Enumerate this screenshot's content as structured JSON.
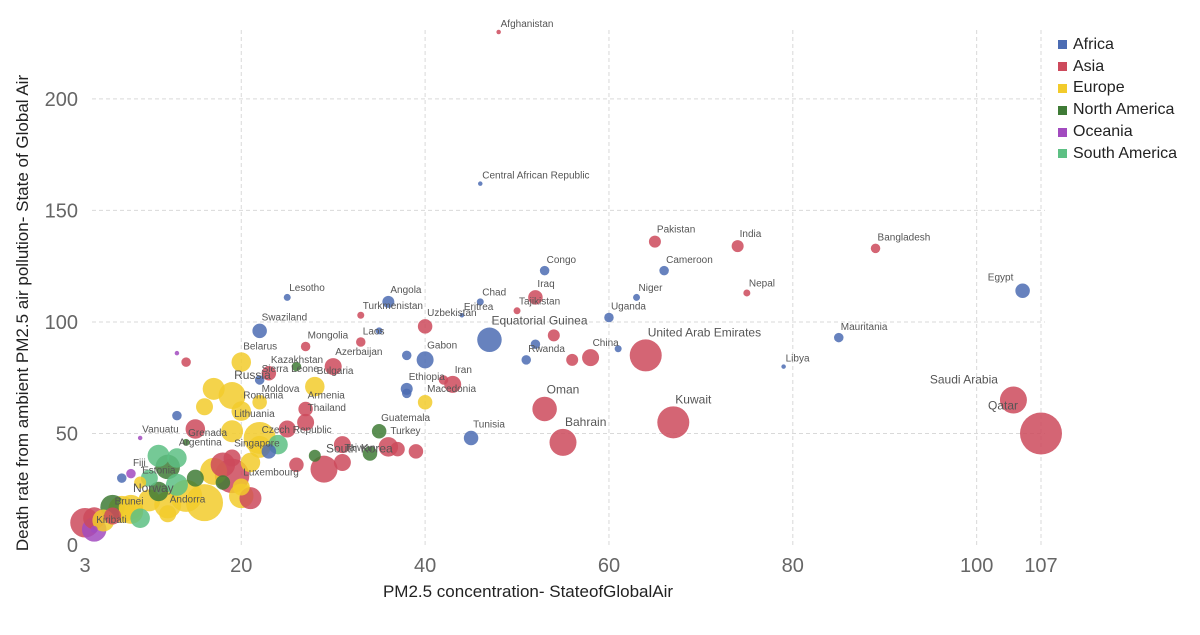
{
  "chart_data": {
    "type": "scatter",
    "xlabel": "PM2.5 concentration- StateofGlobalAir",
    "ylabel": "Death rate from ambient PM2.5 air pollution- State of Global Air",
    "x_ticks": [
      3,
      20,
      40,
      60,
      80,
      100,
      107
    ],
    "y_ticks": [
      0,
      50,
      100,
      150,
      200
    ],
    "xlim": [
      3,
      107
    ],
    "ylim": [
      0,
      230
    ],
    "grid": true,
    "legend_position": "top-right",
    "legend": [
      {
        "name": "Africa",
        "color": "#4C6CB3"
      },
      {
        "name": "Asia",
        "color": "#CD4A5C"
      },
      {
        "name": "Europe",
        "color": "#F2CB2B"
      },
      {
        "name": "North America",
        "color": "#3F7B36"
      },
      {
        "name": "Oceania",
        "color": "#A24BBF"
      },
      {
        "name": "South America",
        "color": "#5DC084"
      }
    ],
    "labeled_points": [
      {
        "name": "Afghanistan",
        "x": 48,
        "y": 230,
        "group": "Asia",
        "size": 1
      },
      {
        "name": "Central African Republic",
        "x": 46,
        "y": 162,
        "group": "Africa",
        "size": 1
      },
      {
        "name": "Pakistan",
        "x": 65,
        "y": 136,
        "group": "Asia",
        "size": 4
      },
      {
        "name": "India",
        "x": 74,
        "y": 134,
        "group": "Asia",
        "size": 4
      },
      {
        "name": "Bangladesh",
        "x": 89,
        "y": 133,
        "group": "Asia",
        "size": 3
      },
      {
        "name": "Congo",
        "x": 53,
        "y": 123,
        "group": "Africa",
        "size": 3
      },
      {
        "name": "Cameroon",
        "x": 66,
        "y": 123,
        "group": "Africa",
        "size": 3
      },
      {
        "name": "Egypt",
        "x": 105,
        "y": 114,
        "group": "Africa",
        "size": 5
      },
      {
        "name": "Nepal",
        "x": 75,
        "y": 113,
        "group": "Asia",
        "size": 2
      },
      {
        "name": "Lesotho",
        "x": 25,
        "y": 111,
        "group": "Africa",
        "size": 2
      },
      {
        "name": "Niger",
        "x": 63,
        "y": 111,
        "group": "Africa",
        "size": 2
      },
      {
        "name": "Iraq",
        "x": 52,
        "y": 111,
        "group": "Asia",
        "size": 5
      },
      {
        "name": "Angola",
        "x": 36,
        "y": 109,
        "group": "Africa",
        "size": 4
      },
      {
        "name": "Chad",
        "x": 46,
        "y": 109,
        "group": "Africa",
        "size": 2
      },
      {
        "name": "Tajikistan",
        "x": 50,
        "y": 105,
        "group": "Asia",
        "size": 2
      },
      {
        "name": "Eritrea",
        "x": 44,
        "y": 103,
        "group": "Africa",
        "size": 1
      },
      {
        "name": "Turkmenistan",
        "x": 33,
        "y": 103,
        "group": "Asia",
        "size": 2
      },
      {
        "name": "Uganda",
        "x": 60,
        "y": 102,
        "group": "Africa",
        "size": 3
      },
      {
        "name": "Uzbekistan",
        "x": 40,
        "y": 98,
        "group": "Asia",
        "size": 5
      },
      {
        "name": "Swaziland",
        "x": 22,
        "y": 96,
        "group": "Africa",
        "size": 5
      },
      {
        "name": "Equatorial Guinea",
        "x": 47,
        "y": 92,
        "group": "Africa",
        "size": 9
      },
      {
        "name": "Mauritania",
        "x": 85,
        "y": 93,
        "group": "Africa",
        "size": 3
      },
      {
        "name": "Mongolia",
        "x": 27,
        "y": 89,
        "group": "Asia",
        "size": 3
      },
      {
        "name": "Laos",
        "x": 33,
        "y": 91,
        "group": "Asia",
        "size": 3
      },
      {
        "name": "United Arab Emirates",
        "x": 64,
        "y": 85,
        "group": "Asia",
        "size": 12
      },
      {
        "name": "China",
        "x": 58,
        "y": 84,
        "group": "Asia",
        "size": 6
      },
      {
        "name": "Gabon",
        "x": 40,
        "y": 83,
        "group": "Africa",
        "size": 6
      },
      {
        "name": "Rwanda",
        "x": 51,
        "y": 83,
        "group": "Africa",
        "size": 3
      },
      {
        "name": "Belarus",
        "x": 20,
        "y": 82,
        "group": "Europe",
        "size": 7
      },
      {
        "name": "Azerbaijan",
        "x": 30,
        "y": 80,
        "group": "Asia",
        "size": 6
      },
      {
        "name": "Libya",
        "x": 79,
        "y": 80,
        "group": "Africa",
        "size": 1
      },
      {
        "name": "Kazakhstan",
        "x": 23,
        "y": 77,
        "group": "Asia",
        "size": 5
      },
      {
        "name": "Sierra Leone",
        "x": 22,
        "y": 74,
        "group": "Africa",
        "size": 3
      },
      {
        "name": "Bulgaria",
        "x": 28,
        "y": 71,
        "group": "Europe",
        "size": 7
      },
      {
        "name": "Iran",
        "x": 43,
        "y": 72,
        "group": "Asia",
        "size": 6
      },
      {
        "name": "Ethiopia",
        "x": 38,
        "y": 70,
        "group": "Africa",
        "size": 4
      },
      {
        "name": "Macedonia",
        "x": 40,
        "y": 64,
        "group": "Europe",
        "size": 5
      },
      {
        "name": "Russia",
        "x": 19,
        "y": 67,
        "group": "Europe",
        "size": 10
      },
      {
        "name": "Moldova",
        "x": 22,
        "y": 64,
        "group": "Europe",
        "size": 5
      },
      {
        "name": "Armenia",
        "x": 27,
        "y": 61,
        "group": "Asia",
        "size": 5
      },
      {
        "name": "Oman",
        "x": 53,
        "y": 61,
        "group": "Asia",
        "size": 9
      },
      {
        "name": "Kuwait",
        "x": 67,
        "y": 55,
        "group": "Asia",
        "size": 12
      },
      {
        "name": "Saudi Arabia",
        "x": 104,
        "y": 65,
        "group": "Asia",
        "size": 10
      },
      {
        "name": "Qatar",
        "x": 107,
        "y": 50,
        "group": "Asia",
        "size": 16
      },
      {
        "name": "Romania",
        "x": 20,
        "y": 60,
        "group": "Europe",
        "size": 7
      },
      {
        "name": "Thailand",
        "x": 27,
        "y": 55,
        "group": "Asia",
        "size": 6
      },
      {
        "name": "Lithuania",
        "x": 19,
        "y": 51,
        "group": "Europe",
        "size": 8
      },
      {
        "name": "Bahrain",
        "x": 55,
        "y": 46,
        "group": "Asia",
        "size": 10
      },
      {
        "name": "Tunisia",
        "x": 45,
        "y": 48,
        "group": "Africa",
        "size": 5
      },
      {
        "name": "Guatemala",
        "x": 35,
        "y": 51,
        "group": "North America",
        "size": 5
      },
      {
        "name": "Vanuatu",
        "x": 9,
        "y": 48,
        "group": "Oceania",
        "size": 1
      },
      {
        "name": "Grenada",
        "x": 14,
        "y": 46,
        "group": "North America",
        "size": 2
      },
      {
        "name": "Czech Republic",
        "x": 22,
        "y": 44,
        "group": "Europe",
        "size": 8
      },
      {
        "name": "Turkey",
        "x": 36,
        "y": 44,
        "group": "Asia",
        "size": 7
      },
      {
        "name": "Argentina",
        "x": 13,
        "y": 39,
        "group": "South America",
        "size": 7
      },
      {
        "name": "Singapore",
        "x": 19,
        "y": 39,
        "group": "Asia",
        "size": 6
      },
      {
        "name": "Taiwan",
        "x": 31,
        "y": 37,
        "group": "Asia",
        "size": 6
      },
      {
        "name": "Fiji",
        "x": 8,
        "y": 32,
        "group": "Oceania",
        "size": 3
      },
      {
        "name": "South Korea",
        "x": 29,
        "y": 34,
        "group": "Asia",
        "size": 10
      },
      {
        "name": "Estonia",
        "x": 9,
        "y": 28,
        "group": "Europe",
        "size": 4
      },
      {
        "name": "Luxembourg",
        "x": 20,
        "y": 26,
        "group": "Europe",
        "size": 6
      },
      {
        "name": "Norway",
        "x": 8,
        "y": 17,
        "group": "Europe",
        "size": 9
      },
      {
        "name": "Andorra",
        "x": 12,
        "y": 14,
        "group": "Europe",
        "size": 6
      },
      {
        "name": "Brunei",
        "x": 6,
        "y": 13,
        "group": "Asia",
        "size": 6
      },
      {
        "name": "Kiribati",
        "x": 4,
        "y": 7,
        "group": "Oceania",
        "size": 2
      }
    ],
    "unlabeled_points": [
      {
        "x": 3,
        "y": 10,
        "group": "Asia",
        "size": 11
      },
      {
        "x": 4,
        "y": 7,
        "group": "Oceania",
        "size": 9
      },
      {
        "x": 4,
        "y": 12,
        "group": "Asia",
        "size": 8
      },
      {
        "x": 5,
        "y": 11,
        "group": "Europe",
        "size": 8
      },
      {
        "x": 6,
        "y": 17,
        "group": "North America",
        "size": 9
      },
      {
        "x": 7,
        "y": 16,
        "group": "Europe",
        "size": 10
      },
      {
        "x": 8,
        "y": 15,
        "group": "Europe",
        "size": 9
      },
      {
        "x": 9,
        "y": 12,
        "group": "South America",
        "size": 7
      },
      {
        "x": 10,
        "y": 20,
        "group": "Europe",
        "size": 8
      },
      {
        "x": 11,
        "y": 24,
        "group": "North America",
        "size": 7
      },
      {
        "x": 12,
        "y": 18,
        "group": "Europe",
        "size": 10
      },
      {
        "x": 13,
        "y": 27,
        "group": "South America",
        "size": 8
      },
      {
        "x": 14,
        "y": 22,
        "group": "Europe",
        "size": 12
      },
      {
        "x": 15,
        "y": 30,
        "group": "North America",
        "size": 6
      },
      {
        "x": 16,
        "y": 19,
        "group": "Europe",
        "size": 14
      },
      {
        "x": 17,
        "y": 33,
        "group": "Europe",
        "size": 10
      },
      {
        "x": 18,
        "y": 36,
        "group": "Asia",
        "size": 9
      },
      {
        "x": 18,
        "y": 28,
        "group": "North America",
        "size": 5
      },
      {
        "x": 19,
        "y": 31,
        "group": "Asia",
        "size": 13
      },
      {
        "x": 20,
        "y": 22,
        "group": "Europe",
        "size": 9
      },
      {
        "x": 21,
        "y": 21,
        "group": "Asia",
        "size": 8
      },
      {
        "x": 21,
        "y": 37,
        "group": "Europe",
        "size": 7
      },
      {
        "x": 22,
        "y": 48,
        "group": "Europe",
        "size": 12
      },
      {
        "x": 23,
        "y": 42,
        "group": "Africa",
        "size": 5
      },
      {
        "x": 24,
        "y": 45,
        "group": "South America",
        "size": 7
      },
      {
        "x": 25,
        "y": 52,
        "group": "Asia",
        "size": 6
      },
      {
        "x": 26,
        "y": 36,
        "group": "Asia",
        "size": 5
      },
      {
        "x": 28,
        "y": 40,
        "group": "North America",
        "size": 4
      },
      {
        "x": 13,
        "y": 58,
        "group": "Africa",
        "size": 3
      },
      {
        "x": 15,
        "y": 52,
        "group": "Asia",
        "size": 7
      },
      {
        "x": 16,
        "y": 62,
        "group": "Europe",
        "size": 6
      },
      {
        "x": 17,
        "y": 70,
        "group": "Europe",
        "size": 8
      },
      {
        "x": 14,
        "y": 82,
        "group": "Asia",
        "size": 3
      },
      {
        "x": 13,
        "y": 86,
        "group": "Oceania",
        "size": 1
      },
      {
        "x": 11,
        "y": 40,
        "group": "South America",
        "size": 8
      },
      {
        "x": 12,
        "y": 35,
        "group": "North America",
        "size": 9
      },
      {
        "x": 10,
        "y": 30,
        "group": "South America",
        "size": 6
      },
      {
        "x": 7,
        "y": 30,
        "group": "Africa",
        "size": 3
      },
      {
        "x": 31,
        "y": 45,
        "group": "Asia",
        "size": 6
      },
      {
        "x": 34,
        "y": 41,
        "group": "North America",
        "size": 5
      },
      {
        "x": 37,
        "y": 43,
        "group": "Asia",
        "size": 5
      },
      {
        "x": 39,
        "y": 42,
        "group": "Asia",
        "size": 5
      },
      {
        "x": 38,
        "y": 68,
        "group": "Africa",
        "size": 3
      },
      {
        "x": 35,
        "y": 96,
        "group": "Africa",
        "size": 2
      },
      {
        "x": 38,
        "y": 85,
        "group": "Africa",
        "size": 3
      },
      {
        "x": 26,
        "y": 80,
        "group": "North America",
        "size": 3
      },
      {
        "x": 42,
        "y": 74,
        "group": "Asia",
        "size": 3
      },
      {
        "x": 52,
        "y": 90,
        "group": "Africa",
        "size": 3
      },
      {
        "x": 54,
        "y": 94,
        "group": "Asia",
        "size": 4
      },
      {
        "x": 56,
        "y": 83,
        "group": "Asia",
        "size": 4
      },
      {
        "x": 61,
        "y": 88,
        "group": "Africa",
        "size": 2
      }
    ]
  }
}
